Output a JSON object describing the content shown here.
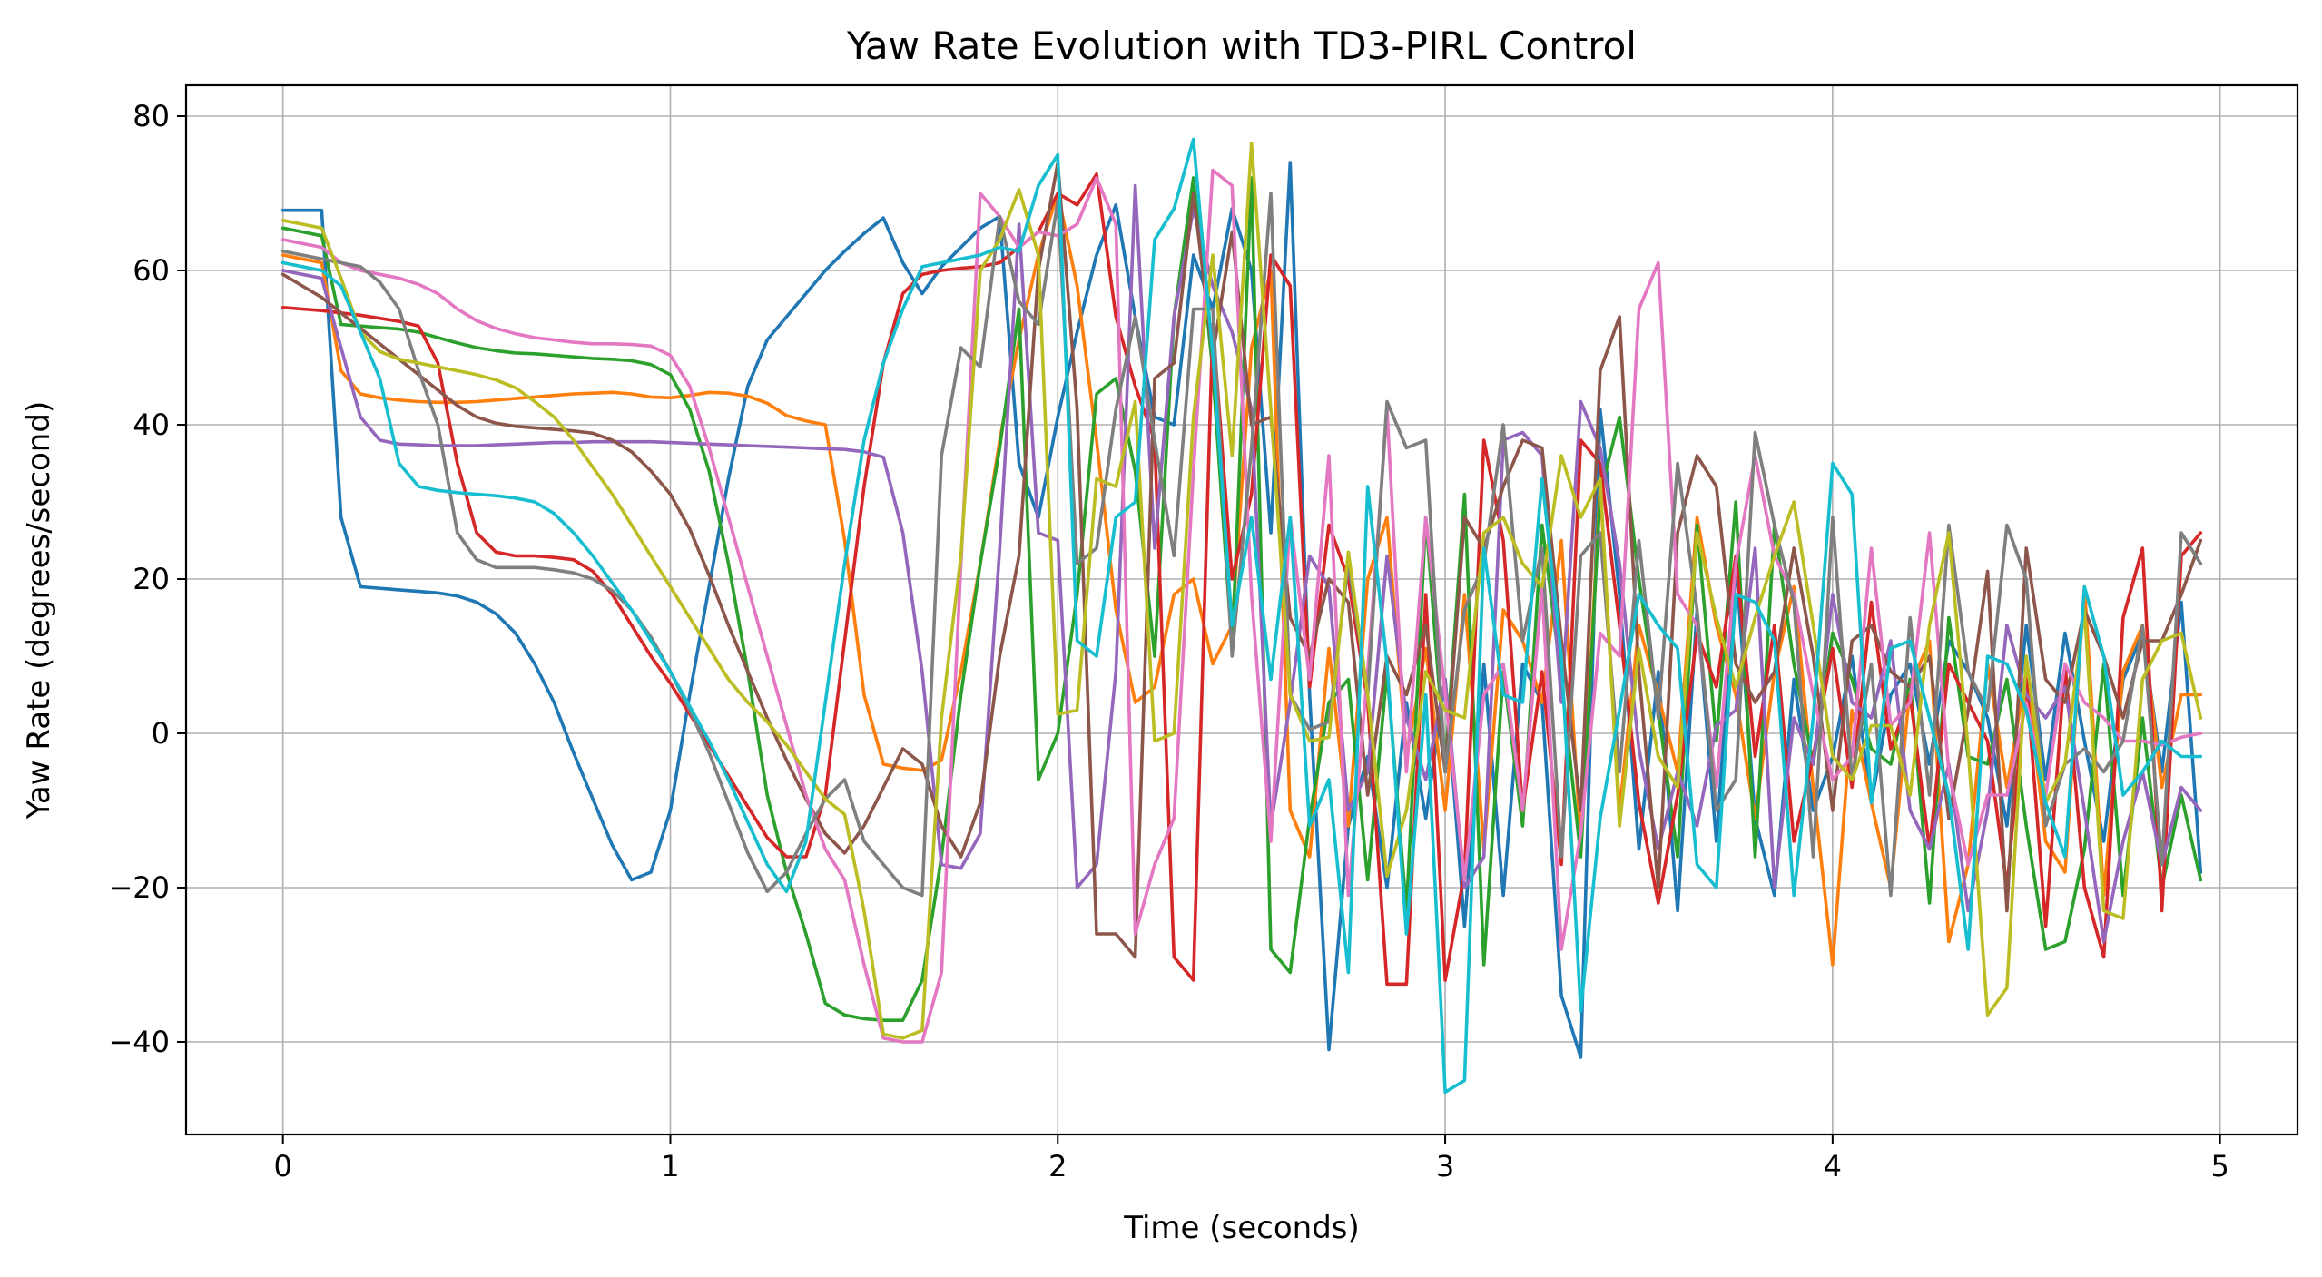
{
  "chart_data": {
    "type": "line",
    "title": "Yaw Rate Evolution with TD3-PIRL Control",
    "xlabel": "Time (seconds)",
    "ylabel": "Yaw Rate (degrees/second)",
    "xlim": [
      -0.25,
      5.2
    ],
    "ylim": [
      -52,
      84
    ],
    "xticks": [
      0,
      1,
      2,
      3,
      4,
      5
    ],
    "yticks": [
      -40,
      -20,
      0,
      20,
      40,
      60,
      80
    ],
    "xtick_labels": [
      "0",
      "1",
      "2",
      "3",
      "4",
      "5"
    ],
    "ytick_labels": [
      "−40",
      "−20",
      "0",
      "20",
      "40",
      "60",
      "80"
    ],
    "grid": true,
    "legend": "none",
    "x": [
      0.0,
      0.05,
      0.1,
      0.15,
      0.2,
      0.25,
      0.3,
      0.35,
      0.4,
      0.45,
      0.5,
      0.55,
      0.6,
      0.65,
      0.7,
      0.75,
      0.8,
      0.85,
      0.9,
      0.95,
      1.0,
      1.05,
      1.1,
      1.15,
      1.2,
      1.25,
      1.3,
      1.35,
      1.4,
      1.45,
      1.5,
      1.55,
      1.6,
      1.65,
      1.7,
      1.75,
      1.8,
      1.85,
      1.9,
      1.95,
      2.0,
      2.05,
      2.1,
      2.15,
      2.2,
      2.25,
      2.3,
      2.35,
      2.4,
      2.45,
      2.5,
      2.55,
      2.6,
      2.65,
      2.7,
      2.75,
      2.8,
      2.85,
      2.9,
      2.95,
      3.0,
      3.05,
      3.1,
      3.15,
      3.2,
      3.25,
      3.3,
      3.35,
      3.4,
      3.45,
      3.5,
      3.55,
      3.6,
      3.65,
      3.7,
      3.75,
      3.8,
      3.85,
      3.9,
      3.95,
      4.0,
      4.05,
      4.1,
      4.15,
      4.2,
      4.25,
      4.3,
      4.35,
      4.4,
      4.45,
      4.5,
      4.55,
      4.6,
      4.65,
      4.7,
      4.75,
      4.8,
      4.85,
      4.9,
      4.95
    ],
    "series": [
      {
        "color": "#1f77b4",
        "values": [
          67.8,
          67.8,
          67.8,
          28,
          19,
          18.8,
          18.6,
          18.4,
          18.2,
          17.8,
          17,
          15.5,
          13,
          9,
          4,
          -2.5,
          -8.5,
          -14.5,
          -19,
          -18,
          -10,
          5,
          19,
          33,
          45,
          51,
          54,
          57,
          60,
          62.5,
          64.8,
          66.8,
          61,
          57,
          60.5,
          63,
          65.5,
          67,
          35,
          28,
          41,
          52,
          62,
          68.5,
          54,
          41,
          40,
          62,
          55,
          68,
          60,
          26,
          74,
          5,
          -41,
          -12,
          -3,
          -20,
          4,
          -11,
          7,
          -25,
          9,
          -21,
          9,
          4,
          -34,
          -42,
          42,
          18,
          -15,
          8,
          -23,
          16,
          -14,
          22,
          -11,
          -21,
          7,
          -10,
          -3,
          10,
          -9,
          5,
          9,
          -4,
          12,
          8,
          2,
          -12,
          14,
          -6,
          13,
          -1,
          -14,
          7,
          13,
          -5,
          17,
          -18
        ]
      },
      {
        "color": "#ff7f0e",
        "values": [
          62,
          61.5,
          61,
          47,
          44,
          43.5,
          43.2,
          43,
          42.9,
          42.9,
          43,
          43.2,
          43.4,
          43.6,
          43.8,
          44,
          44.1,
          44.2,
          44,
          43.6,
          43.5,
          43.8,
          44.2,
          44.1,
          43.7,
          42.8,
          41.2,
          40.5,
          40,
          25,
          5,
          -4,
          -4.5,
          -4.8,
          -3.5,
          8,
          22,
          38,
          51,
          62,
          70,
          58,
          38,
          16,
          4,
          6,
          18,
          20,
          9,
          14,
          50,
          60,
          -10,
          -16,
          11,
          -12,
          20,
          28,
          -3,
          11,
          -10,
          18,
          -15,
          16,
          12,
          4,
          25,
          -14,
          32,
          -10,
          14,
          5,
          -5,
          28,
          14,
          5,
          -11,
          8,
          19,
          -7,
          -30,
          3,
          -9,
          -20,
          6,
          12,
          -27,
          -17,
          9,
          -7,
          8,
          -14,
          -18,
          19,
          -21,
          8,
          14,
          -7,
          5,
          5
        ]
      },
      {
        "color": "#2ca02c",
        "values": [
          65.5,
          65,
          64.5,
          53,
          52.8,
          52.6,
          52.4,
          52,
          51.3,
          50.6,
          50,
          49.6,
          49.3,
          49.2,
          49,
          48.8,
          48.6,
          48.5,
          48.3,
          47.8,
          46.5,
          42,
          34,
          22,
          8,
          -8,
          -18,
          -26,
          -35,
          -36.5,
          -37,
          -37.2,
          -37.2,
          -32,
          -16,
          5,
          22,
          37,
          55,
          -6,
          0,
          18,
          44,
          46,
          34,
          10,
          54,
          72,
          47,
          11,
          72,
          -28,
          -31,
          -11,
          4,
          7,
          -19,
          8,
          -23,
          28,
          -4,
          31,
          -30,
          8,
          -12,
          27,
          7,
          -16,
          31,
          41,
          20,
          3,
          -16,
          27,
          -1,
          30,
          -16,
          27,
          9,
          -4,
          13,
          7,
          -2,
          -4,
          7,
          -22,
          15,
          -3,
          -4,
          7,
          -12,
          -28,
          -27,
          -15,
          9,
          -21,
          2,
          -20,
          -8,
          -19
        ]
      },
      {
        "color": "#d62728",
        "values": [
          55.2,
          55,
          54.8,
          54.5,
          54.2,
          53.8,
          53.4,
          52.8,
          48,
          35,
          26,
          23.5,
          23,
          23,
          22.8,
          22.5,
          21,
          18,
          14,
          10,
          6.5,
          2.5,
          -1.5,
          -5.5,
          -9.5,
          -13.5,
          -16,
          -16,
          -8,
          12,
          32,
          48,
          57,
          59.5,
          60,
          60.3,
          60.5,
          61,
          63,
          65,
          70,
          68.5,
          72.5,
          54,
          45,
          38,
          -29,
          -32,
          53,
          20,
          31,
          62,
          58,
          6,
          27,
          20,
          4,
          -32.5,
          -32.5,
          18,
          -32,
          -18,
          38,
          25,
          -10,
          8,
          -17,
          38,
          35,
          14,
          -9,
          -22,
          -8,
          13,
          6,
          23,
          -3,
          14,
          -14,
          -3,
          11,
          -7,
          17,
          -2,
          5,
          -15,
          9,
          4,
          -1,
          -20,
          7,
          -25,
          9,
          -20,
          -29,
          15,
          24,
          -23,
          23,
          26
        ]
      },
      {
        "color": "#9467bd",
        "values": [
          60,
          59.5,
          59,
          50,
          41,
          38,
          37.5,
          37.4,
          37.3,
          37.3,
          37.3,
          37.4,
          37.5,
          37.6,
          37.7,
          37.7,
          37.8,
          37.8,
          37.8,
          37.8,
          37.7,
          37.6,
          37.5,
          37.4,
          37.3,
          37.2,
          37.1,
          37,
          36.9,
          36.8,
          36.5,
          35.8,
          26,
          8,
          -17,
          -17.5,
          -13,
          24,
          66,
          26,
          25,
          -20,
          -17,
          8,
          71,
          24,
          54,
          68,
          58,
          52,
          42,
          -12,
          4,
          23,
          19,
          -10,
          -5,
          23,
          2,
          -6,
          7,
          -20,
          -16,
          38,
          39,
          36,
          4,
          43,
          37,
          22,
          -2,
          -15,
          -5,
          -12,
          1,
          3,
          24,
          -20,
          2,
          -4,
          18,
          4,
          2,
          12,
          -10,
          -15,
          -4,
          -23,
          -10,
          14,
          5,
          2,
          6,
          -10,
          -27,
          -14,
          -5,
          -17,
          -7,
          -10
        ]
      },
      {
        "color": "#8c564b",
        "values": [
          59.5,
          58,
          56.5,
          54.5,
          52.5,
          50.5,
          48.5,
          46.5,
          44.5,
          42.5,
          41,
          40.2,
          39.8,
          39.6,
          39.4,
          39.2,
          38.9,
          38,
          36.5,
          34,
          31,
          26.5,
          20.5,
          14,
          8,
          2,
          -3.5,
          -8.5,
          -13,
          -15.5,
          -12,
          -7,
          -2,
          -4,
          -12,
          -16,
          -9,
          10,
          23,
          60,
          74,
          42,
          -26,
          -26,
          -29,
          46,
          48,
          70,
          49,
          65,
          40,
          41,
          15,
          10,
          20,
          17,
          -8,
          10,
          5,
          14,
          -5,
          28,
          24,
          32,
          38,
          37,
          12,
          -10,
          47,
          54,
          8,
          -20,
          26,
          36,
          32,
          9,
          4,
          8,
          24,
          10,
          -10,
          12,
          14,
          8,
          6,
          10,
          -11,
          3,
          21,
          -23,
          24,
          7,
          4,
          16,
          10,
          2,
          12,
          12,
          18,
          25
        ]
      },
      {
        "color": "#e377c2",
        "values": [
          64,
          63.5,
          63,
          61,
          60,
          59.5,
          59,
          58.2,
          57,
          55,
          53.5,
          52.5,
          51.8,
          51.3,
          51,
          50.7,
          50.5,
          50.5,
          50.4,
          50.2,
          49,
          45,
          37,
          28,
          19,
          10,
          1,
          -8,
          -15,
          -19,
          -30,
          -39.5,
          -40,
          -40,
          -31,
          22,
          70,
          67,
          63,
          65,
          64.5,
          66,
          72,
          66,
          -26,
          -17,
          -11,
          34,
          73,
          71,
          18,
          -14,
          28,
          7,
          36,
          -21,
          8,
          42,
          -5,
          28,
          5,
          -19,
          5,
          9,
          -10,
          19,
          -28,
          -13,
          13,
          10,
          55,
          61,
          18,
          14,
          -7,
          22,
          36,
          23,
          18,
          5,
          -6,
          -3,
          24,
          1,
          4,
          26,
          -5,
          -17,
          -8,
          -8,
          4,
          -8,
          9,
          4,
          2,
          -1,
          -1,
          -1.5,
          -0.5,
          0
        ]
      },
      {
        "color": "#7f7f7f",
        "values": [
          62.5,
          62,
          61.5,
          61,
          60.5,
          58.5,
          55,
          47,
          40,
          26,
          22.5,
          21.5,
          21.5,
          21.5,
          21.2,
          20.8,
          20,
          18.5,
          16,
          12.5,
          8,
          3,
          -2.5,
          -9,
          -15.5,
          -20.5,
          -18,
          -13,
          -8.5,
          -6,
          -14,
          -17,
          -20,
          -21,
          36,
          50,
          47.5,
          67,
          56,
          53,
          69,
          22,
          24,
          42,
          54,
          38,
          23,
          55,
          55,
          10,
          37,
          70,
          5,
          0.5,
          1.5,
          22,
          5,
          43,
          37,
          38,
          -5,
          16,
          22,
          40,
          12,
          24,
          -16,
          23,
          26,
          -5,
          25,
          2,
          35,
          16,
          -10,
          -6,
          39,
          27,
          17,
          -16,
          28,
          -6,
          9,
          -21,
          15,
          -8,
          27,
          8,
          3,
          27,
          20,
          -12,
          -4,
          -2,
          -5,
          -1,
          14,
          -17,
          26,
          22
        ]
      },
      {
        "color": "#bcbd22",
        "values": [
          66.5,
          66,
          65.5,
          59,
          52,
          49.5,
          48.5,
          48,
          47.5,
          47,
          46.5,
          45.8,
          44.8,
          43,
          41,
          38,
          34.5,
          31,
          27,
          23,
          19,
          15,
          11,
          7,
          4,
          1.5,
          -1.5,
          -5,
          -8.5,
          -10.5,
          -23,
          -39,
          -39.5,
          -38.5,
          2,
          23,
          60,
          64,
          70.5,
          62,
          2.5,
          3,
          33,
          32,
          43,
          -1,
          0,
          41,
          62,
          36,
          76.5,
          42,
          5,
          -1,
          -0.5,
          23.5,
          5,
          -18.5,
          -10,
          8,
          3,
          2,
          26,
          28,
          22,
          19,
          36,
          28,
          33,
          -12,
          11,
          -3,
          -7,
          26,
          15,
          6,
          15,
          23,
          30,
          14,
          -3,
          -6,
          1,
          1,
          -8,
          14,
          26,
          -2,
          -36.5,
          -33,
          10,
          -9,
          -4,
          16,
          -23,
          -24,
          7,
          12,
          13,
          2
        ]
      },
      {
        "color": "#17becf",
        "values": [
          61,
          60.5,
          60,
          58,
          52,
          46,
          35,
          32,
          31.5,
          31.2,
          31,
          30.8,
          30.5,
          30,
          28.5,
          26,
          23,
          19.5,
          16,
          12,
          8,
          3.5,
          -1,
          -6,
          -11.5,
          -17,
          -20.5,
          -14,
          4,
          22,
          38,
          48,
          55,
          60.5,
          61,
          61.5,
          62,
          63,
          62.5,
          71,
          75,
          12,
          10,
          28,
          30,
          64,
          68,
          77,
          49,
          14,
          28,
          7,
          28,
          -12,
          -6,
          -31,
          32,
          9,
          -26,
          5,
          -46.5,
          -45,
          24,
          5,
          4,
          33,
          10,
          -36,
          -11,
          3,
          18,
          14,
          11,
          -17,
          -20,
          18,
          17,
          12,
          -21,
          2,
          35,
          31,
          -9,
          11,
          12,
          2,
          -8,
          -28,
          10,
          9,
          3,
          -9,
          -16,
          19,
          10,
          -8,
          -5,
          -1,
          -3,
          -3
        ]
      }
    ]
  }
}
